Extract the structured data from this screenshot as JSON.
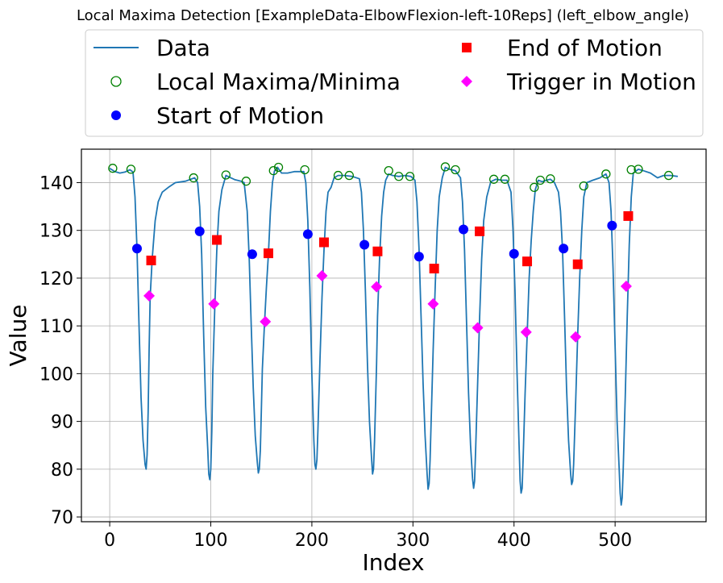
{
  "chart_data": {
    "type": "line",
    "title": "Local Maxima Detection [ExampleData-ElbowFlexion-left-10Reps] (left_elbow_angle)",
    "xlabel": "Index",
    "ylabel": "Value",
    "xlim": [
      -28,
      590
    ],
    "ylim": [
      69,
      147
    ],
    "xticks": [
      0,
      100,
      200,
      300,
      400,
      500
    ],
    "yticks": [
      70,
      80,
      90,
      100,
      110,
      120,
      130,
      140
    ],
    "grid": true,
    "legend_placement": "top (above plot), 2 columns",
    "colors": {
      "data": "#1f77b4",
      "extrema": "#008000",
      "start": "#0000ff",
      "end": "#ff0000",
      "trigger": "#ff00ff"
    },
    "legend": [
      {
        "key": "data",
        "label": "Data",
        "marker": "line"
      },
      {
        "key": "extrema",
        "label": "Local Maxima/Minima",
        "marker": "open-circle"
      },
      {
        "key": "start",
        "label": "Start of Motion",
        "marker": "circle"
      },
      {
        "key": "end",
        "label": "End of Motion",
        "marker": "square"
      },
      {
        "key": "trigger",
        "label": "Trigger in Motion",
        "marker": "diamond"
      }
    ],
    "data_line": [
      [
        0,
        143.0
      ],
      [
        5,
        142.3
      ],
      [
        10,
        142.0
      ],
      [
        15,
        142.2
      ],
      [
        20,
        142.7
      ],
      [
        23,
        142.2
      ],
      [
        25,
        137.0
      ],
      [
        27,
        126.0
      ],
      [
        29,
        110.0
      ],
      [
        31,
        95.0
      ],
      [
        33,
        86.0
      ],
      [
        35,
        81.0
      ],
      [
        36,
        80.0
      ],
      [
        37,
        83.0
      ],
      [
        38,
        92.0
      ],
      [
        39,
        105.0
      ],
      [
        40,
        116.0
      ],
      [
        42,
        124.0
      ],
      [
        45,
        132.0
      ],
      [
        48,
        136.0
      ],
      [
        52,
        138.0
      ],
      [
        58,
        139.0
      ],
      [
        65,
        140.0
      ],
      [
        75,
        140.3
      ],
      [
        84,
        141.0
      ],
      [
        87,
        140.0
      ],
      [
        89,
        135.0
      ],
      [
        91,
        125.0
      ],
      [
        93,
        108.0
      ],
      [
        95,
        93.0
      ],
      [
        97,
        84.0
      ],
      [
        98,
        79.0
      ],
      [
        99,
        77.8
      ],
      [
        100,
        80.0
      ],
      [
        101,
        88.0
      ],
      [
        102,
        100.0
      ],
      [
        104,
        114.0
      ],
      [
        106,
        126.0
      ],
      [
        108,
        134.0
      ],
      [
        111,
        138.5
      ],
      [
        115,
        141.5
      ],
      [
        118,
        141.2
      ],
      [
        124,
        140.6
      ],
      [
        130,
        140.3
      ],
      [
        133,
        140.0
      ],
      [
        136,
        134.0
      ],
      [
        138,
        124.0
      ],
      [
        140,
        110.0
      ],
      [
        142,
        97.0
      ],
      [
        144,
        87.0
      ],
      [
        146,
        81.5
      ],
      [
        147,
        79.2
      ],
      [
        148,
        80.0
      ],
      [
        149,
        84.0
      ],
      [
        150,
        92.0
      ],
      [
        151,
        101.0
      ],
      [
        153,
        110.0
      ],
      [
        155,
        118.0
      ],
      [
        157,
        125.0
      ],
      [
        159,
        134.0
      ],
      [
        161,
        140.0
      ],
      [
        163,
        142.4
      ],
      [
        166,
        143.2
      ],
      [
        170,
        142.0
      ],
      [
        176,
        142.0
      ],
      [
        183,
        142.3
      ],
      [
        192,
        142.3
      ],
      [
        194,
        140.0
      ],
      [
        196,
        132.0
      ],
      [
        198,
        118.0
      ],
      [
        200,
        100.0
      ],
      [
        202,
        86.0
      ],
      [
        203,
        81.0
      ],
      [
        204,
        80.0
      ],
      [
        205,
        82.0
      ],
      [
        206,
        88.0
      ],
      [
        208,
        103.0
      ],
      [
        210,
        116.0
      ],
      [
        212,
        126.0
      ],
      [
        214,
        134.0
      ],
      [
        216,
        138.0
      ],
      [
        219,
        139.0
      ],
      [
        222,
        141.0
      ],
      [
        226,
        141.5
      ],
      [
        232,
        141.5
      ],
      [
        240,
        141.3
      ],
      [
        247,
        140.8
      ],
      [
        249,
        138.0
      ],
      [
        251,
        130.0
      ],
      [
        253,
        117.0
      ],
      [
        255,
        102.0
      ],
      [
        257,
        90.0
      ],
      [
        259,
        82.5
      ],
      [
        260,
        79.0
      ],
      [
        261,
        80.0
      ],
      [
        262,
        86.0
      ],
      [
        264,
        102.0
      ],
      [
        265,
        112.0
      ],
      [
        267,
        124.0
      ],
      [
        269,
        133.0
      ],
      [
        271,
        138.0
      ],
      [
        273,
        140.5
      ],
      [
        276,
        141.8
      ],
      [
        280,
        141.5
      ],
      [
        286,
        141.3
      ],
      [
        292,
        141.5
      ],
      [
        298,
        141.3
      ],
      [
        302,
        140.5
      ],
      [
        304,
        136.0
      ],
      [
        306,
        126.0
      ],
      [
        308,
        112.0
      ],
      [
        310,
        98.0
      ],
      [
        312,
        87.0
      ],
      [
        314,
        79.0
      ],
      [
        315,
        75.8
      ],
      [
        316,
        77.0
      ],
      [
        317,
        82.0
      ],
      [
        318,
        90.0
      ],
      [
        320,
        105.0
      ],
      [
        322,
        118.0
      ],
      [
        324,
        130.0
      ],
      [
        326,
        137.0
      ],
      [
        329,
        141.0
      ],
      [
        332,
        143.2
      ],
      [
        336,
        142.8
      ],
      [
        342,
        142.5
      ],
      [
        347,
        141.0
      ],
      [
        349,
        136.0
      ],
      [
        351,
        126.0
      ],
      [
        353,
        111.0
      ],
      [
        355,
        96.0
      ],
      [
        357,
        85.0
      ],
      [
        359,
        78.0
      ],
      [
        360,
        76.0
      ],
      [
        361,
        77.5
      ],
      [
        362,
        84.0
      ],
      [
        364,
        98.0
      ],
      [
        366,
        112.0
      ],
      [
        368,
        124.0
      ],
      [
        370,
        132.0
      ],
      [
        373,
        137.0
      ],
      [
        377,
        140.2
      ],
      [
        382,
        140.7
      ],
      [
        388,
        140.5
      ],
      [
        393,
        140.5
      ],
      [
        397,
        138.0
      ],
      [
        399,
        130.0
      ],
      [
        401,
        117.0
      ],
      [
        403,
        100.0
      ],
      [
        405,
        85.0
      ],
      [
        406,
        77.5
      ],
      [
        407,
        75.0
      ],
      [
        408,
        76.0
      ],
      [
        409,
        82.0
      ],
      [
        411,
        96.0
      ],
      [
        413,
        108.0
      ],
      [
        415,
        120.0
      ],
      [
        417,
        128.0
      ],
      [
        419,
        134.0
      ],
      [
        421,
        138.5
      ],
      [
        424,
        140.5
      ],
      [
        428,
        140.2
      ],
      [
        432,
        140.5
      ],
      [
        436,
        140.7
      ],
      [
        440,
        140.0
      ],
      [
        444,
        138.0
      ],
      [
        446,
        134.0
      ],
      [
        448,
        126.0
      ],
      [
        450,
        112.0
      ],
      [
        452,
        97.0
      ],
      [
        454,
        86.0
      ],
      [
        456,
        79.0
      ],
      [
        457,
        76.8
      ],
      [
        458,
        77.5
      ],
      [
        459,
        81.0
      ],
      [
        461,
        94.0
      ],
      [
        463,
        108.0
      ],
      [
        465,
        120.0
      ],
      [
        467,
        130.0
      ],
      [
        469,
        137.0
      ],
      [
        472,
        140.0
      ],
      [
        478,
        140.5
      ],
      [
        485,
        141.0
      ],
      [
        491,
        141.8
      ],
      [
        494,
        140.0
      ],
      [
        496,
        134.0
      ],
      [
        498,
        122.0
      ],
      [
        500,
        106.0
      ],
      [
        502,
        90.0
      ],
      [
        504,
        80.0
      ],
      [
        505,
        75.0
      ],
      [
        506,
        72.5
      ],
      [
        507,
        74.0
      ],
      [
        508,
        80.0
      ],
      [
        510,
        95.0
      ],
      [
        512,
        112.0
      ],
      [
        514,
        127.0
      ],
      [
        516,
        137.0
      ],
      [
        518,
        142.0
      ],
      [
        523,
        142.8
      ],
      [
        528,
        142.5
      ],
      [
        535,
        142.0
      ],
      [
        542,
        141.0
      ],
      [
        548,
        141.5
      ],
      [
        555,
        141.5
      ],
      [
        562,
        141.3
      ]
    ],
    "extrema": [
      [
        3,
        143.0
      ],
      [
        21,
        142.8
      ],
      [
        83,
        141.0
      ],
      [
        115,
        141.6
      ],
      [
        135,
        140.3
      ],
      [
        162,
        142.5
      ],
      [
        167,
        143.2
      ],
      [
        193,
        142.7
      ],
      [
        226,
        141.5
      ],
      [
        237,
        141.5
      ],
      [
        276,
        142.5
      ],
      [
        286,
        141.3
      ],
      [
        297,
        141.3
      ],
      [
        332,
        143.3
      ],
      [
        342,
        142.7
      ],
      [
        380,
        140.7
      ],
      [
        391,
        140.7
      ],
      [
        420,
        139.0
      ],
      [
        426,
        140.5
      ],
      [
        436,
        140.8
      ],
      [
        469,
        139.3
      ],
      [
        491,
        141.8
      ],
      [
        516,
        142.7
      ],
      [
        523,
        142.8
      ],
      [
        553,
        141.5
      ]
    ],
    "start_of_motion": [
      [
        27,
        126.2
      ],
      [
        89,
        129.8
      ],
      [
        141,
        125.0
      ],
      [
        196,
        129.2
      ],
      [
        252,
        127.0
      ],
      [
        306,
        124.5
      ],
      [
        350,
        130.2
      ],
      [
        400,
        125.1
      ],
      [
        449,
        126.2
      ],
      [
        497,
        131.0
      ]
    ],
    "end_of_motion": [
      [
        41,
        123.7
      ],
      [
        106,
        128.0
      ],
      [
        157,
        125.2
      ],
      [
        212,
        127.5
      ],
      [
        265,
        125.6
      ],
      [
        321,
        122.0
      ],
      [
        366,
        129.8
      ],
      [
        413,
        123.5
      ],
      [
        463,
        122.9
      ],
      [
        513,
        133.0
      ]
    ],
    "trigger_in_motion": [
      [
        39,
        116.3
      ],
      [
        103,
        114.6
      ],
      [
        154,
        110.9
      ],
      [
        210,
        120.5
      ],
      [
        264,
        118.2
      ],
      [
        320,
        114.6
      ],
      [
        364,
        109.6
      ],
      [
        412,
        108.7
      ],
      [
        461,
        107.7
      ],
      [
        511,
        118.3
      ]
    ]
  }
}
